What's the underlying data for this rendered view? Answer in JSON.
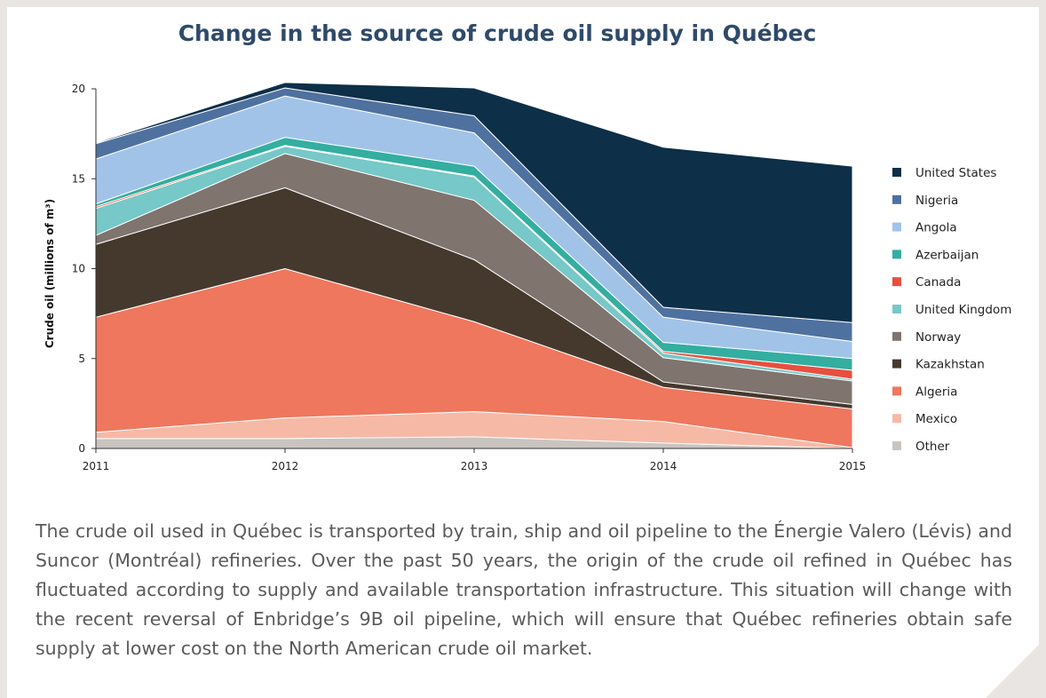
{
  "chart_data": {
    "type": "stacked_area",
    "title": "Change in the source of crude oil supply in Québec",
    "y_label": "Crude oil (millions of m³)",
    "x": [
      2011,
      2012,
      2013,
      2014,
      2015
    ],
    "xlim": [
      2011,
      2015
    ],
    "xticks": [
      2011,
      2012,
      2013,
      2014,
      2015
    ],
    "ylim": [
      0,
      20
    ],
    "yticks": [
      0,
      5,
      10,
      15,
      20
    ],
    "legend": "right",
    "series": [
      {
        "name": "Other",
        "color": "#c9c4c0",
        "values": [
          0.55,
          0.55,
          0.65,
          0.3,
          0
        ]
      },
      {
        "name": "Mexico",
        "color": "#f6b9a6",
        "values": [
          0.35,
          1.15,
          1.4,
          1.2,
          0.05
        ]
      },
      {
        "name": "Algeria",
        "color": "#ee775e",
        "values": [
          6.4,
          8.3,
          5.0,
          1.9,
          2.15
        ]
      },
      {
        "name": "Kazakhstan",
        "color": "#45392e",
        "values": [
          4.05,
          4.5,
          3.45,
          0.3,
          0.25
        ]
      },
      {
        "name": "Norway",
        "color": "#7f746e",
        "values": [
          0.5,
          1.9,
          3.3,
          1.35,
          1.3
        ]
      },
      {
        "name": "United Kingdom",
        "color": "#77c8c8",
        "values": [
          1.5,
          0.4,
          1.3,
          0.25,
          0.1
        ]
      },
      {
        "name": "Canada",
        "color": "#e84f3f",
        "values": [
          0.1,
          0.05,
          0.05,
          0.1,
          0.5
        ]
      },
      {
        "name": "Azerbaijan",
        "color": "#33aea0",
        "values": [
          0.15,
          0.45,
          0.55,
          0.5,
          0.65
        ]
      },
      {
        "name": "Angola",
        "color": "#a2c3e8",
        "values": [
          2.5,
          2.3,
          1.85,
          1.4,
          0.95
        ]
      },
      {
        "name": "Nigeria",
        "color": "#4f71a0",
        "values": [
          0.85,
          0.45,
          0.95,
          0.55,
          1.05
        ]
      },
      {
        "name": "United States",
        "color": "#0d2f48",
        "values": [
          0.05,
          0.3,
          1.55,
          8.9,
          8.7
        ]
      }
    ]
  },
  "paragraph": "The crude oil used in Québec is transported by train, ship and oil pipeline to the Énergie Valero (Lévis) and Suncor (Montréal) refineries. Over the past 50 years, the origin of the crude oil refined in Québec has fluctuated according to supply and available transportation infrastructure. This situation will change with the recent reversal of Enbridge’s 9B oil pipeline, which will ensure that Québec refineries obtain safe supply at lower cost on the North American crude oil market."
}
